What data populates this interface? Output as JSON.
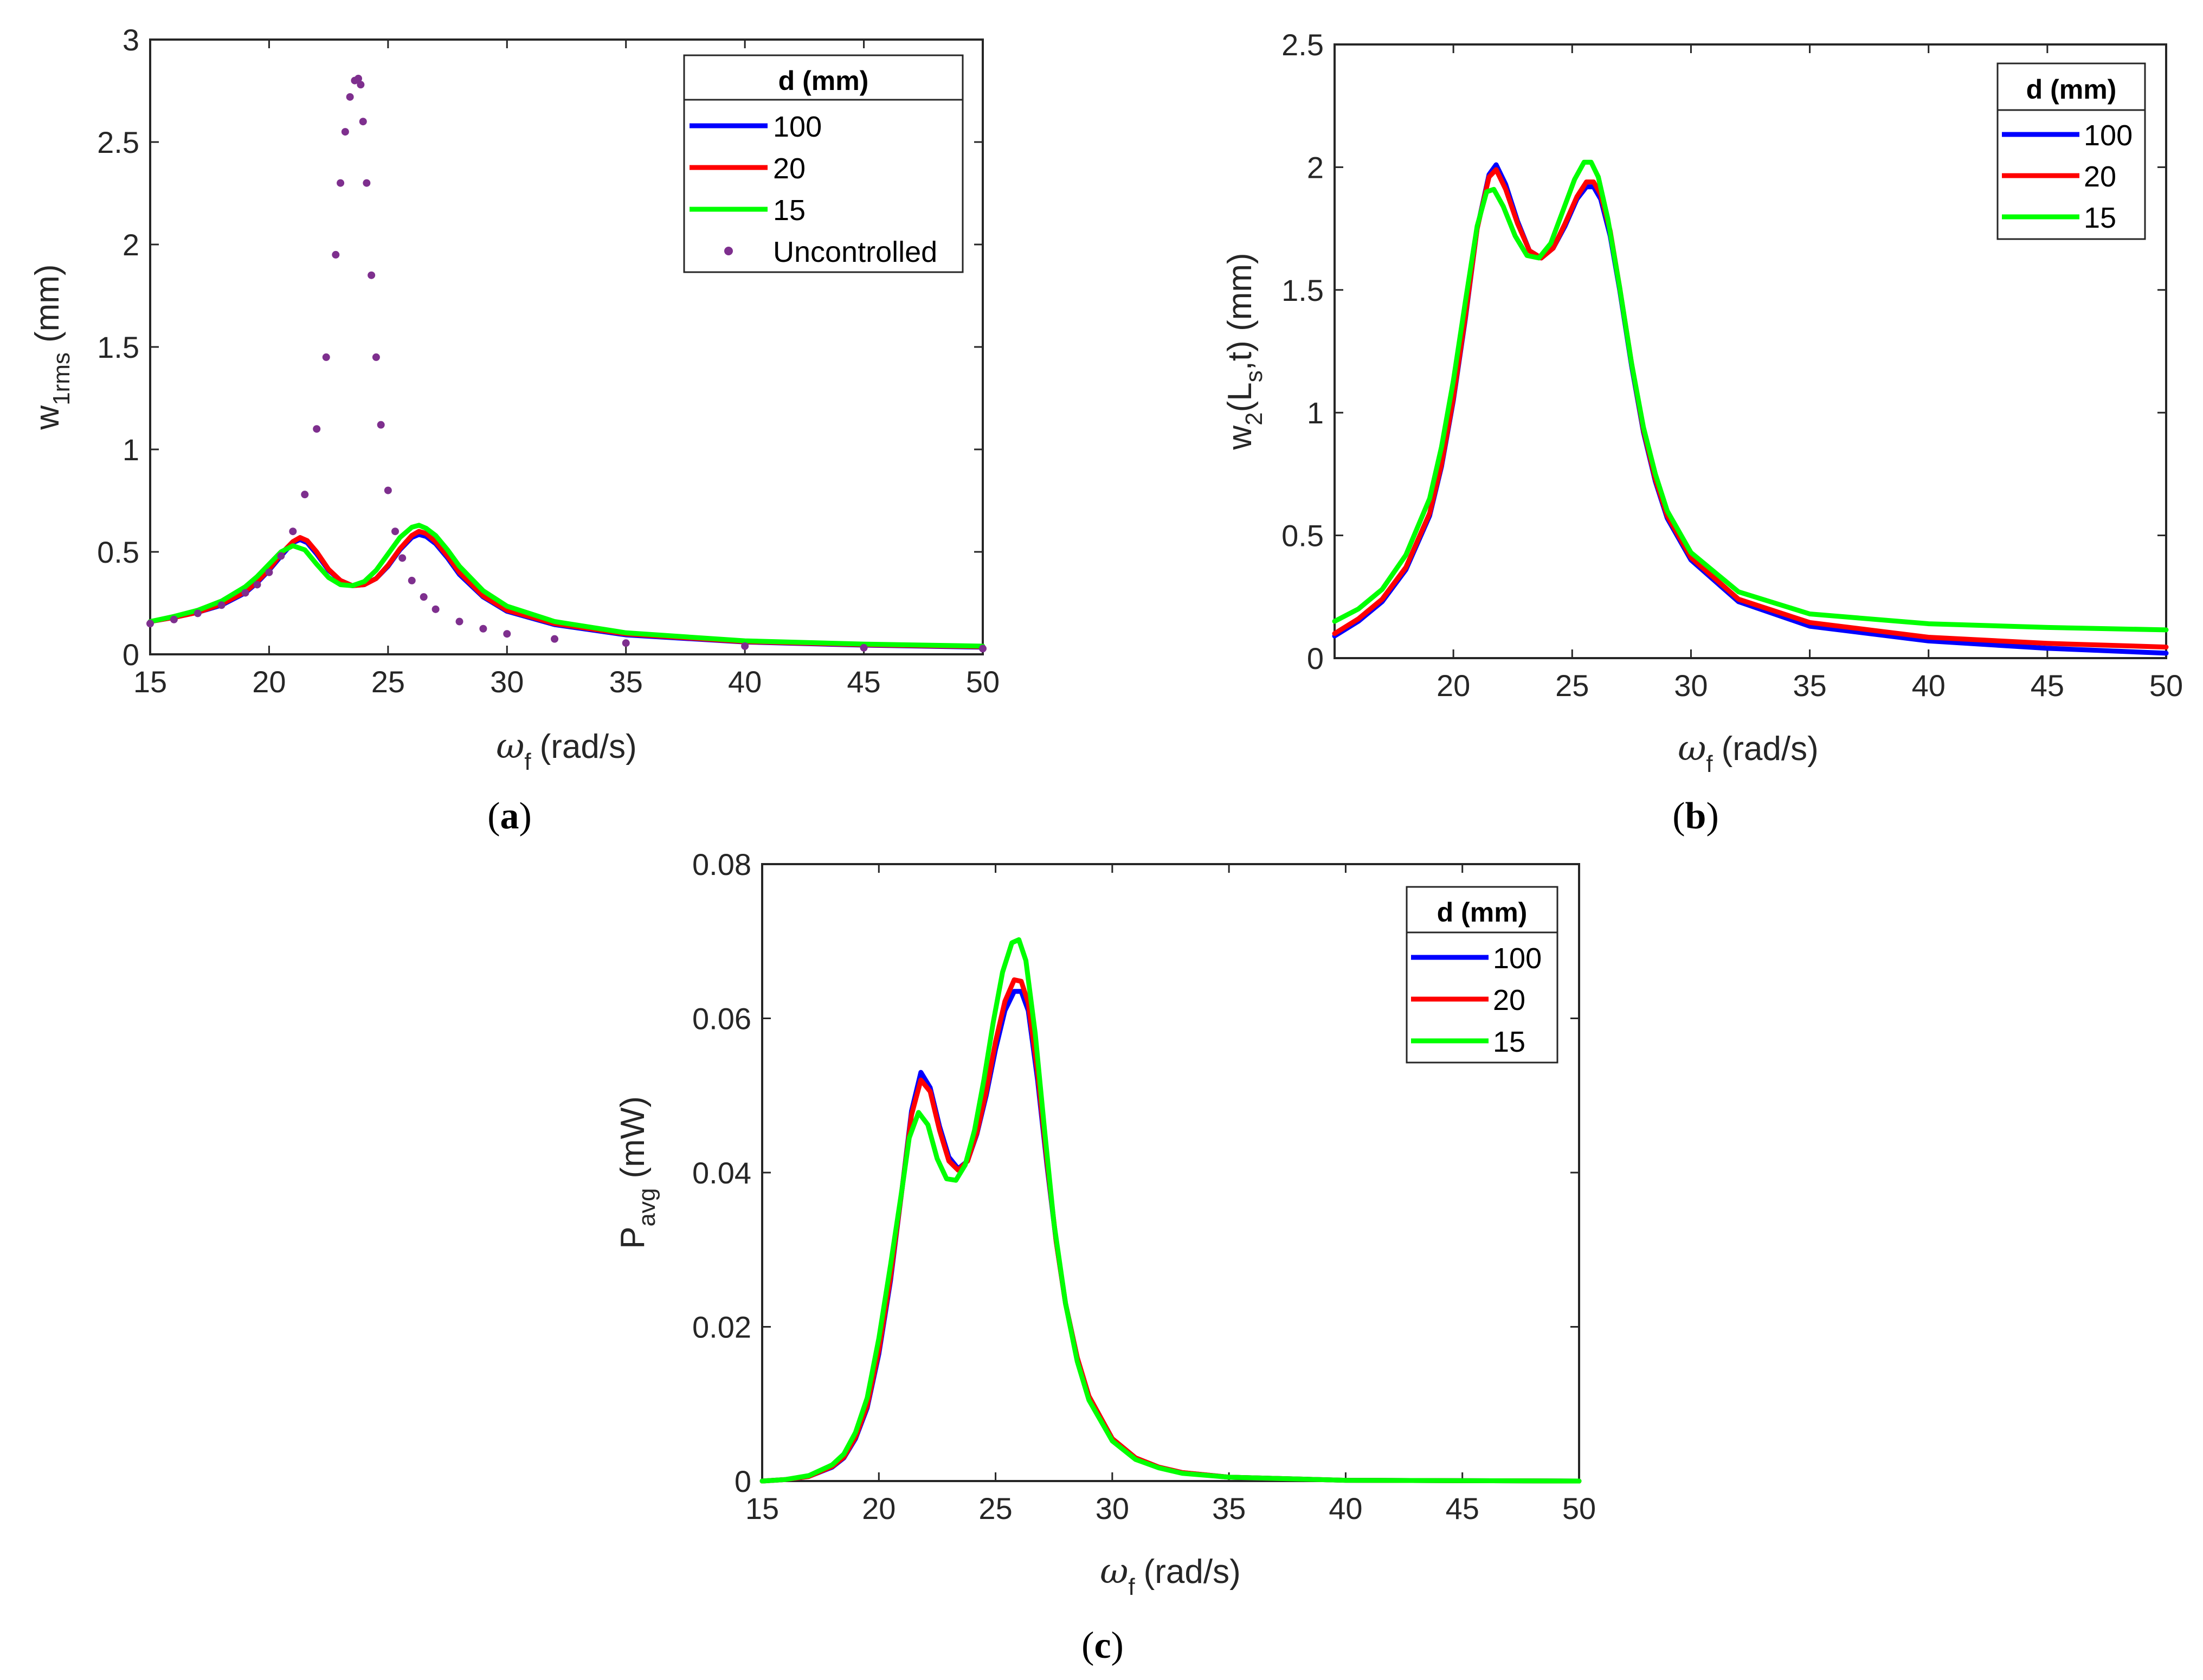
{
  "figure": {
    "panel_labels": [
      "a",
      "b",
      "c"
    ]
  },
  "chart_data": [
    {
      "id": "a",
      "type": "line",
      "xlabel_symbol": "ω",
      "xlabel_sub": "f",
      "xlabel_unit": "(rad/s)",
      "ylabel_main": "w",
      "ylabel_sub": "1rms",
      "ylabel_unit": "(mm)",
      "xlim": [
        15,
        50
      ],
      "ylim": [
        0,
        3
      ],
      "xticks": [
        15,
        20,
        25,
        30,
        35,
        40,
        45,
        50
      ],
      "yticks": [
        0,
        0.5,
        1,
        1.5,
        2,
        2.5,
        3
      ],
      "legend_title": "d (mm)",
      "legend_position": "top-right",
      "series": [
        {
          "name": "100",
          "color": "#0000ff",
          "style": "line",
          "x": [
            15,
            16,
            17,
            18,
            19,
            19.5,
            20,
            20.5,
            21,
            21.3,
            21.6,
            22,
            22.5,
            23,
            23.5,
            24,
            24.5,
            25,
            25.5,
            26,
            26.3,
            26.6,
            27,
            27.5,
            28,
            29,
            30,
            32,
            35,
            40,
            45,
            50
          ],
          "y": [
            0.16,
            0.18,
            0.205,
            0.24,
            0.3,
            0.35,
            0.41,
            0.48,
            0.545,
            0.56,
            0.545,
            0.49,
            0.41,
            0.36,
            0.335,
            0.34,
            0.37,
            0.43,
            0.51,
            0.57,
            0.585,
            0.575,
            0.54,
            0.47,
            0.39,
            0.28,
            0.21,
            0.145,
            0.095,
            0.06,
            0.045,
            0.035
          ]
        },
        {
          "name": "20",
          "color": "#ff0000",
          "style": "line",
          "x": [
            15,
            16,
            17,
            18,
            19,
            19.5,
            20,
            20.5,
            21,
            21.3,
            21.6,
            22,
            22.5,
            23,
            23.5,
            24,
            24.5,
            25,
            25.5,
            26,
            26.3,
            26.6,
            27,
            27.5,
            28,
            29,
            30,
            32,
            35,
            40,
            45,
            50
          ],
          "y": [
            0.16,
            0.18,
            0.205,
            0.245,
            0.305,
            0.355,
            0.415,
            0.49,
            0.55,
            0.57,
            0.555,
            0.5,
            0.415,
            0.36,
            0.335,
            0.34,
            0.37,
            0.435,
            0.515,
            0.58,
            0.6,
            0.59,
            0.55,
            0.48,
            0.4,
            0.285,
            0.215,
            0.15,
            0.1,
            0.062,
            0.047,
            0.037
          ]
        },
        {
          "name": "15",
          "color": "#00ff00",
          "style": "line",
          "x": [
            15,
            16,
            17,
            18,
            19,
            19.5,
            20,
            20.5,
            21,
            21.5,
            22,
            22.5,
            23,
            23.5,
            24,
            24.5,
            25,
            25.5,
            26,
            26.3,
            26.6,
            27,
            27.5,
            28,
            29,
            30,
            32,
            35,
            40,
            45,
            50
          ],
          "y": [
            0.16,
            0.185,
            0.215,
            0.26,
            0.33,
            0.38,
            0.44,
            0.5,
            0.53,
            0.51,
            0.44,
            0.375,
            0.34,
            0.335,
            0.355,
            0.41,
            0.49,
            0.57,
            0.62,
            0.63,
            0.615,
            0.58,
            0.51,
            0.43,
            0.31,
            0.235,
            0.16,
            0.105,
            0.066,
            0.05,
            0.04
          ]
        },
        {
          "name": "Uncontrolled",
          "color": "#7e2f8e",
          "style": "dots",
          "x": [
            15,
            16,
            17,
            18,
            19,
            19.5,
            20,
            20.5,
            21,
            21.5,
            22,
            22.4,
            22.8,
            23,
            23.2,
            23.4,
            23.6,
            23.75,
            23.85,
            23.95,
            24.1,
            24.3,
            24.5,
            24.7,
            25,
            25.3,
            25.6,
            26,
            26.5,
            27,
            28,
            29,
            30,
            32,
            35,
            40,
            45,
            50
          ],
          "y": [
            0.15,
            0.17,
            0.2,
            0.24,
            0.3,
            0.34,
            0.4,
            0.48,
            0.6,
            0.78,
            1.1,
            1.45,
            1.95,
            2.3,
            2.55,
            2.72,
            2.8,
            2.81,
            2.78,
            2.6,
            2.3,
            1.85,
            1.45,
            1.12,
            0.8,
            0.6,
            0.47,
            0.36,
            0.28,
            0.22,
            0.16,
            0.125,
            0.1,
            0.075,
            0.055,
            0.04,
            0.032,
            0.028
          ]
        }
      ]
    },
    {
      "id": "b",
      "type": "line",
      "xlabel_symbol": "ω",
      "xlabel_sub": "f",
      "xlabel_unit": "(rad/s)",
      "ylabel_main": "w",
      "ylabel_sub": "2",
      "ylabel_mid": "(L",
      "ylabel_sub2": "s",
      "ylabel_end": ",t) (mm)",
      "xlim": [
        15,
        50
      ],
      "ylim": [
        0,
        2.5
      ],
      "xticks": [
        20,
        25,
        30,
        35,
        40,
        45,
        50
      ],
      "yticks": [
        0,
        0.5,
        1,
        1.5,
        2,
        2.5
      ],
      "legend_title": "d (mm)",
      "legend_position": "top-right",
      "series": [
        {
          "name": "100",
          "color": "#0000ff",
          "style": "line",
          "x": [
            15,
            16,
            17,
            18,
            19,
            19.5,
            20,
            20.5,
            21,
            21.5,
            21.8,
            22.2,
            22.7,
            23.2,
            23.7,
            24.2,
            24.7,
            25.2,
            25.6,
            25.9,
            26.2,
            26.6,
            27,
            27.5,
            28,
            28.5,
            29,
            30,
            32,
            35,
            40,
            45,
            50
          ],
          "y": [
            0.09,
            0.15,
            0.23,
            0.36,
            0.58,
            0.78,
            1.05,
            1.38,
            1.75,
            1.97,
            2.01,
            1.93,
            1.78,
            1.66,
            1.63,
            1.67,
            1.76,
            1.87,
            1.92,
            1.92,
            1.87,
            1.72,
            1.5,
            1.19,
            0.92,
            0.72,
            0.57,
            0.4,
            0.23,
            0.13,
            0.07,
            0.04,
            0.02
          ]
        },
        {
          "name": "20",
          "color": "#ff0000",
          "style": "line",
          "x": [
            15,
            16,
            17,
            18,
            19,
            19.5,
            20,
            20.5,
            21,
            21.5,
            21.8,
            22.2,
            22.7,
            23.2,
            23.7,
            24.2,
            24.7,
            25.2,
            25.6,
            25.9,
            26.2,
            26.6,
            27,
            27.5,
            28,
            28.5,
            29,
            30,
            32,
            35,
            40,
            45,
            50
          ],
          "y": [
            0.1,
            0.16,
            0.24,
            0.37,
            0.59,
            0.79,
            1.06,
            1.39,
            1.75,
            1.96,
            1.99,
            1.91,
            1.77,
            1.66,
            1.63,
            1.67,
            1.77,
            1.88,
            1.94,
            1.94,
            1.89,
            1.74,
            1.51,
            1.2,
            0.93,
            0.73,
            0.58,
            0.41,
            0.24,
            0.145,
            0.085,
            0.06,
            0.045
          ]
        },
        {
          "name": "15",
          "color": "#00ff00",
          "style": "line",
          "x": [
            15,
            16,
            17,
            18,
            19,
            19.5,
            20,
            20.5,
            21,
            21.4,
            21.7,
            22.1,
            22.6,
            23.1,
            23.6,
            24.1,
            24.6,
            25.1,
            25.5,
            25.8,
            26.1,
            26.5,
            27,
            27.5,
            28,
            28.5,
            29,
            30,
            32,
            35,
            40,
            45,
            50
          ],
          "y": [
            0.15,
            0.2,
            0.28,
            0.42,
            0.65,
            0.86,
            1.13,
            1.45,
            1.76,
            1.9,
            1.91,
            1.84,
            1.72,
            1.64,
            1.63,
            1.69,
            1.82,
            1.95,
            2.02,
            2.02,
            1.96,
            1.79,
            1.51,
            1.2,
            0.94,
            0.75,
            0.6,
            0.43,
            0.27,
            0.18,
            0.14,
            0.125,
            0.115
          ]
        }
      ]
    },
    {
      "id": "c",
      "type": "line",
      "xlabel_symbol": "ω",
      "xlabel_sub": "f",
      "xlabel_unit": "(rad/s)",
      "ylabel_main": "P",
      "ylabel_sub": "avg",
      "ylabel_unit": "(mW)",
      "xlim": [
        15,
        50
      ],
      "ylim": [
        0,
        0.08
      ],
      "xticks": [
        15,
        20,
        25,
        30,
        35,
        40,
        45,
        50
      ],
      "yticks": [
        0,
        0.02,
        0.04,
        0.06,
        0.08
      ],
      "ytick_labels": [
        "0",
        "0.02",
        "0.04",
        "0.06",
        "0.08"
      ],
      "legend_title": "d (mm)",
      "legend_position": "top-right",
      "series": [
        {
          "name": "100",
          "color": "#0000ff",
          "style": "line",
          "x": [
            15,
            16,
            17,
            18,
            18.5,
            19,
            19.5,
            20,
            20.5,
            21,
            21.4,
            21.8,
            22.2,
            22.6,
            23,
            23.4,
            23.8,
            24.2,
            24.6,
            25,
            25.4,
            25.8,
            26.1,
            26.4,
            26.8,
            27.2,
            27.6,
            28,
            28.5,
            29,
            30,
            31,
            32,
            33,
            35,
            40,
            50
          ],
          "y": [
            0,
            0.0002,
            0.0006,
            0.0018,
            0.003,
            0.0055,
            0.0095,
            0.0165,
            0.026,
            0.038,
            0.048,
            0.053,
            0.051,
            0.046,
            0.042,
            0.0405,
            0.0415,
            0.045,
            0.05,
            0.056,
            0.061,
            0.0635,
            0.0635,
            0.061,
            0.052,
            0.041,
            0.031,
            0.023,
            0.016,
            0.011,
            0.0055,
            0.003,
            0.0018,
            0.0011,
            0.0005,
            0.0001,
            0
          ]
        },
        {
          "name": "20",
          "color": "#ff0000",
          "style": "line",
          "x": [
            15,
            16,
            17,
            18,
            18.5,
            19,
            19.5,
            20,
            20.5,
            21,
            21.4,
            21.8,
            22.2,
            22.6,
            23,
            23.4,
            23.8,
            24.2,
            24.6,
            25,
            25.4,
            25.8,
            26.1,
            26.4,
            26.8,
            27.2,
            27.6,
            28,
            28.5,
            29,
            30,
            31,
            32,
            33,
            35,
            40,
            50
          ],
          "y": [
            0,
            0.0002,
            0.0006,
            0.0019,
            0.0031,
            0.0057,
            0.0098,
            0.017,
            0.0265,
            0.038,
            0.0475,
            0.052,
            0.0505,
            0.0455,
            0.0415,
            0.0403,
            0.0415,
            0.0452,
            0.0505,
            0.057,
            0.0622,
            0.065,
            0.0648,
            0.062,
            0.053,
            0.0415,
            0.031,
            0.023,
            0.016,
            0.011,
            0.0055,
            0.003,
            0.0018,
            0.0011,
            0.0005,
            0.0001,
            0
          ]
        },
        {
          "name": "15",
          "color": "#00ff00",
          "style": "line",
          "x": [
            15,
            16,
            17,
            18,
            18.5,
            19,
            19.5,
            20,
            20.5,
            21,
            21.3,
            21.7,
            22.1,
            22.5,
            22.9,
            23.3,
            23.7,
            24.1,
            24.5,
            24.9,
            25.3,
            25.7,
            26,
            26.3,
            26.7,
            27.1,
            27.5,
            28,
            28.5,
            29,
            30,
            31,
            32,
            33,
            35,
            40,
            50
          ],
          "y": [
            0,
            0.0002,
            0.0007,
            0.0021,
            0.0035,
            0.0063,
            0.0108,
            0.0185,
            0.028,
            0.038,
            0.0445,
            0.0478,
            0.0462,
            0.0418,
            0.0392,
            0.039,
            0.041,
            0.0455,
            0.052,
            0.0595,
            0.066,
            0.0698,
            0.0702,
            0.0675,
            0.058,
            0.0455,
            0.0335,
            0.023,
            0.0155,
            0.0105,
            0.0052,
            0.0028,
            0.0017,
            0.001,
            0.0005,
            0.0001,
            0
          ]
        }
      ]
    }
  ]
}
